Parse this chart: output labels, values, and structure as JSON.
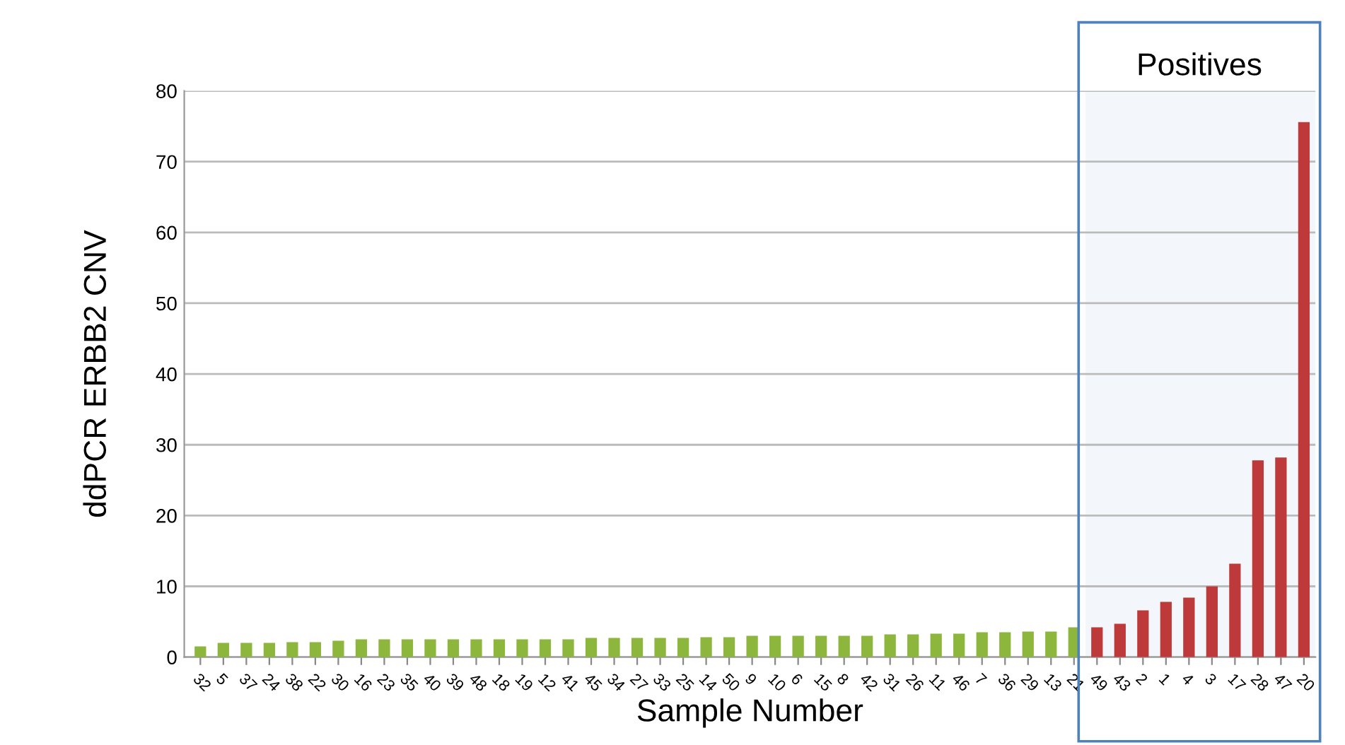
{
  "chart_data": {
    "type": "bar",
    "xlabel": "Sample Number",
    "ylabel": "ddPCR ERBB2 CNV",
    "categories": [
      "32",
      "5",
      "37",
      "24",
      "38",
      "22",
      "30",
      "16",
      "23",
      "35",
      "40",
      "39",
      "48",
      "18",
      "19",
      "12",
      "41",
      "45",
      "34",
      "27",
      "33",
      "25",
      "14",
      "50",
      "9",
      "10",
      "6",
      "15",
      "8",
      "42",
      "31",
      "26",
      "11",
      "46",
      "7",
      "36",
      "29",
      "13",
      "21",
      "49",
      "43",
      "2",
      "1",
      "4",
      "3",
      "17",
      "28",
      "47",
      "20"
    ],
    "values": [
      1.5,
      2,
      2,
      2,
      2.1,
      2.1,
      2.3,
      2.5,
      2.5,
      2.5,
      2.5,
      2.5,
      2.5,
      2.5,
      2.5,
      2.5,
      2.5,
      2.7,
      2.7,
      2.7,
      2.7,
      2.7,
      2.8,
      2.8,
      3,
      3,
      3,
      3,
      3,
      3,
      3.2,
      3.2,
      3.3,
      3.3,
      3.5,
      3.5,
      3.6,
      3.6,
      4.2,
      4.2,
      4.7,
      6.6,
      7.8,
      8.4,
      10,
      13.2,
      27.8,
      28.2,
      75.6
    ],
    "colors": [
      "#8db63c",
      "#8db63c",
      "#8db63c",
      "#8db63c",
      "#8db63c",
      "#8db63c",
      "#8db63c",
      "#8db63c",
      "#8db63c",
      "#8db63c",
      "#8db63c",
      "#8db63c",
      "#8db63c",
      "#8db63c",
      "#8db63c",
      "#8db63c",
      "#8db63c",
      "#8db63c",
      "#8db63c",
      "#8db63c",
      "#8db63c",
      "#8db63c",
      "#8db63c",
      "#8db63c",
      "#8db63c",
      "#8db63c",
      "#8db63c",
      "#8db63c",
      "#8db63c",
      "#8db63c",
      "#8db63c",
      "#8db63c",
      "#8db63c",
      "#8db63c",
      "#8db63c",
      "#8db63c",
      "#8db63c",
      "#8db63c",
      "#8db63c",
      "#be3a3a",
      "#be3a3a",
      "#be3a3a",
      "#be3a3a",
      "#be3a3a",
      "#be3a3a",
      "#be3a3a",
      "#be3a3a",
      "#be3a3a",
      "#be3a3a"
    ],
    "ylim": [
      0,
      80
    ],
    "yticks": [
      0,
      10,
      20,
      30,
      40,
      50,
      60,
      70,
      80
    ],
    "grid": "y",
    "bands": [
      {
        "axis": "x",
        "from": "49",
        "to": "20",
        "label": "Positives",
        "color": "#4f81bd"
      }
    ]
  }
}
